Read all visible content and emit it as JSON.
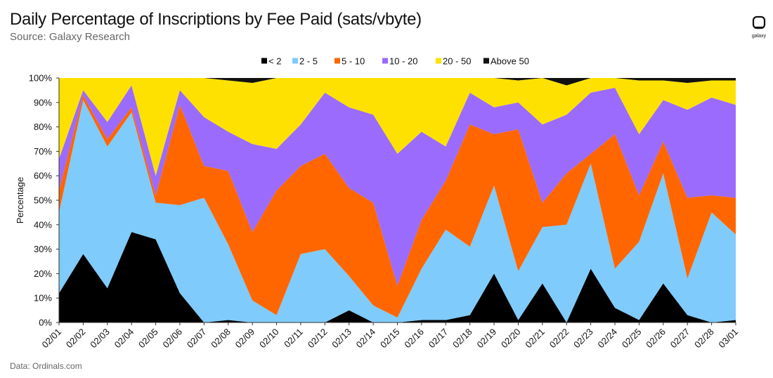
{
  "header": {
    "title": "Daily Percentage of Inscriptions by Fee Paid (sats/vbyte)",
    "subtitle": "Source: Galaxy Research"
  },
  "logo": {
    "text": "galaxy"
  },
  "footer": {
    "data_source": "Data: Ordinals.com"
  },
  "chart_data": {
    "type": "area",
    "stacked": true,
    "title": "Daily Percentage of Inscriptions by Fee Paid (sats/vbyte)",
    "ylabel": "Percentage",
    "ylim": [
      0,
      100
    ],
    "yticks": [
      "0%",
      "10%",
      "20%",
      "30%",
      "40%",
      "50%",
      "60%",
      "70%",
      "80%",
      "90%",
      "100%"
    ],
    "legend_position": "top-center",
    "categories": [
      "02/01",
      "02/02",
      "02/03",
      "02/04",
      "02/05",
      "02/06",
      "02/07",
      "02/08",
      "02/09",
      "02/10",
      "02/11",
      "02/12",
      "02/13",
      "02/14",
      "02/15",
      "02/16",
      "02/17",
      "02/18",
      "02/19",
      "02/20",
      "02/21",
      "02/22",
      "02/23",
      "02/24",
      "02/25",
      "02/26",
      "02/27",
      "02/28",
      "03/01"
    ],
    "series": [
      {
        "name": "< 2",
        "color": "#000000",
        "values": [
          12,
          28,
          14,
          37,
          34,
          12,
          0,
          1,
          0,
          0,
          0,
          0,
          5,
          0,
          0,
          1,
          1,
          3,
          20,
          1,
          16,
          0,
          22,
          6,
          1,
          16,
          3,
          0,
          1
        ]
      },
      {
        "name": "2 - 5",
        "color": "#7fcbfc",
        "values": [
          33,
          63,
          58,
          49,
          15,
          36,
          51,
          31,
          9,
          3,
          28,
          30,
          14,
          7,
          2,
          21,
          37,
          28,
          36,
          20,
          23,
          40,
          43,
          16,
          32,
          45,
          15,
          45,
          35
        ]
      },
      {
        "name": "5 - 10",
        "color": "#ff6600",
        "values": [
          9,
          2,
          3,
          2,
          3,
          41,
          13,
          30,
          28,
          51,
          36,
          39,
          36,
          42,
          13,
          20,
          20,
          50,
          21,
          58,
          10,
          21,
          4,
          55,
          19,
          13,
          33,
          7,
          15
        ]
      },
      {
        "name": "10 - 20",
        "color": "#9b6bfd",
        "values": [
          13,
          2,
          7,
          9,
          8,
          6,
          20,
          16,
          36,
          17,
          17,
          25,
          33,
          36,
          54,
          36,
          14,
          13,
          11,
          11,
          32,
          24,
          25,
          19,
          25,
          17,
          36,
          40,
          38
        ]
      },
      {
        "name": "20 - 50",
        "color": "#ffe100",
        "values": [
          33,
          5,
          18,
          3,
          40,
          5,
          16,
          21,
          25,
          29,
          19,
          6,
          12,
          15,
          31,
          22,
          28,
          6,
          12,
          9,
          19,
          12,
          6,
          4,
          22,
          8,
          11,
          7,
          10
        ]
      },
      {
        "name": "Above 50",
        "color": "#111111",
        "values": [
          0,
          0,
          0,
          0,
          0,
          0,
          0,
          1,
          2,
          0,
          0,
          0,
          0,
          0,
          0,
          0,
          0,
          0,
          0,
          1,
          0,
          3,
          0,
          0,
          1,
          1,
          2,
          1,
          1
        ]
      }
    ]
  }
}
